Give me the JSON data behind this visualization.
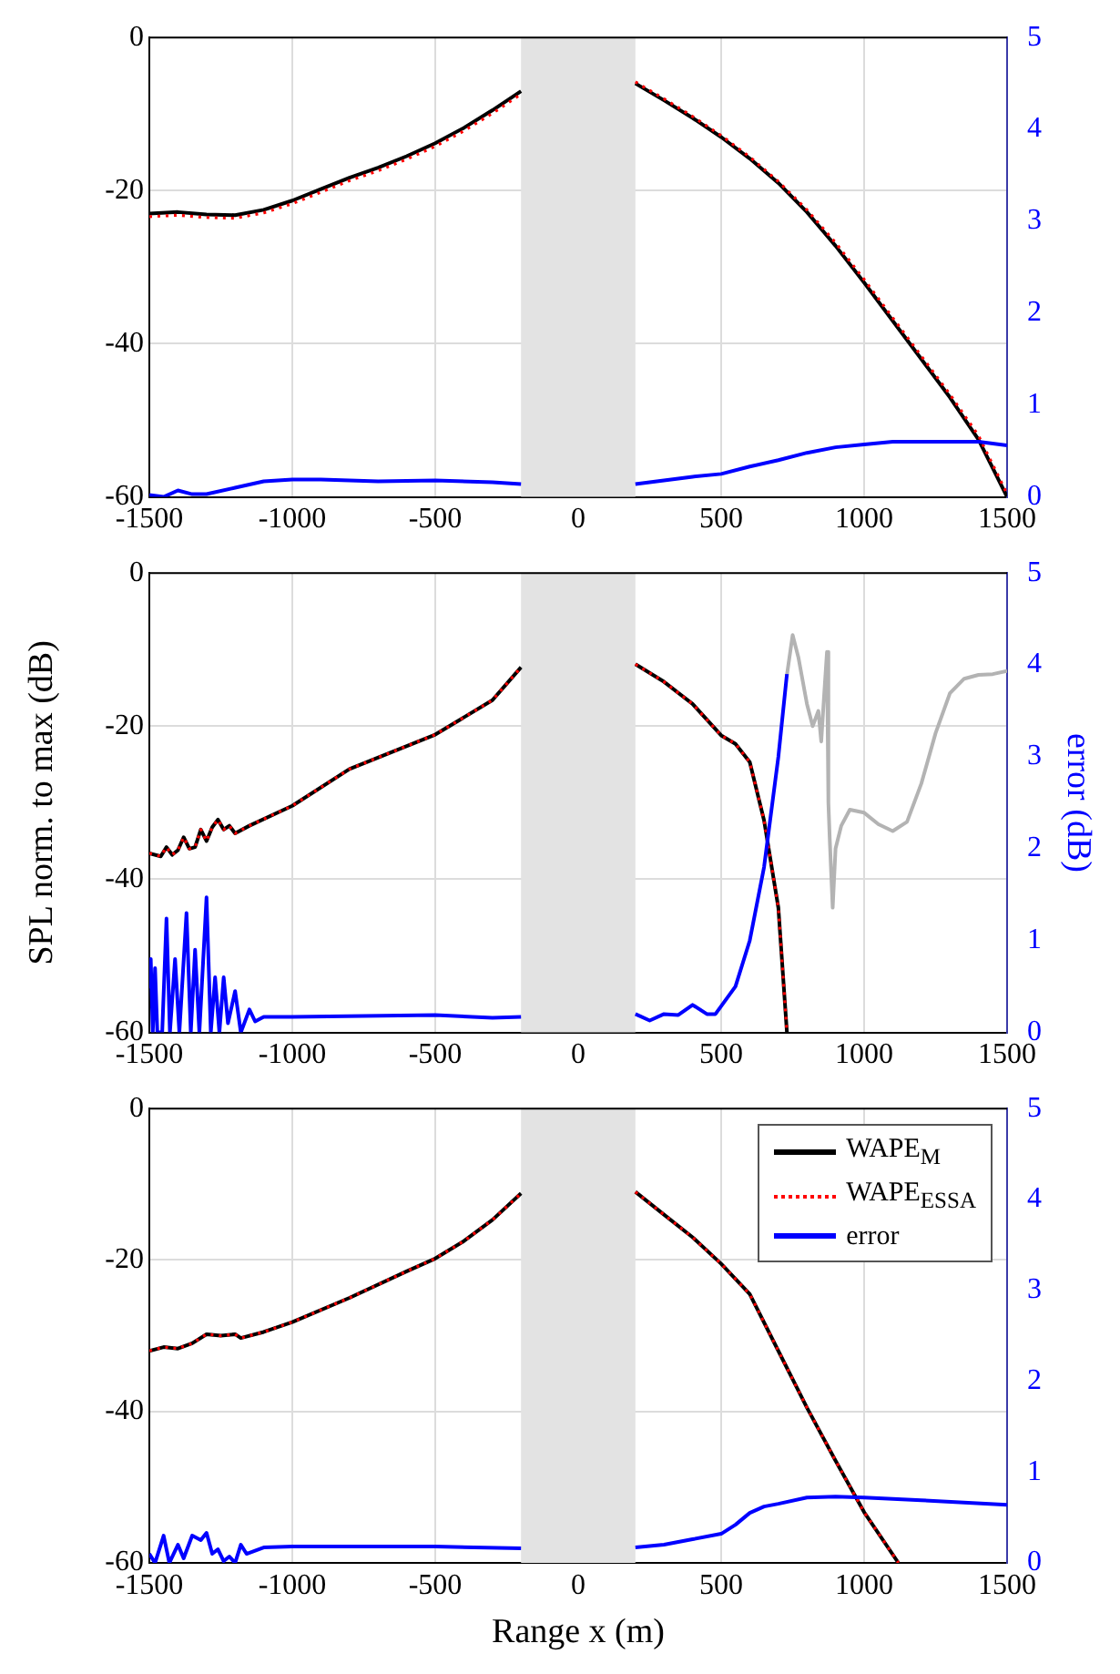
{
  "chart_data": [
    {
      "type": "line",
      "xlim": [
        -1500,
        1500
      ],
      "xticks": [
        -1500,
        -1000,
        -500,
        0,
        500,
        1000,
        1500
      ],
      "ylim": [
        -60,
        0
      ],
      "yticks": [
        -60,
        -40,
        -20,
        0
      ],
      "y2lim": [
        0,
        5
      ],
      "y2ticks": [
        0,
        1,
        2,
        3,
        4,
        5
      ],
      "grid": true,
      "bands": [
        {
          "axis": "x",
          "from": -200,
          "to": 200,
          "color": "#e3e3e3"
        }
      ],
      "series": [
        {
          "color": "#000000",
          "line_style": "solid",
          "x": [
            -1500,
            -1400,
            -1300,
            -1200,
            -1100,
            -1000,
            -900,
            -800,
            -700,
            -600,
            -500,
            -400,
            -300,
            -200,
            0,
            200,
            300,
            400,
            500,
            600,
            700,
            800,
            900,
            1000,
            1100,
            1200,
            1300,
            1400,
            1500
          ],
          "values": [
            -23,
            -22.8,
            -23.1,
            -23.2,
            -22.5,
            -21.3,
            -19.8,
            -18.3,
            -17,
            -15.5,
            -13.8,
            -11.8,
            -9.5,
            -7,
            null,
            -6,
            -8.2,
            -10.5,
            -13,
            -15.8,
            -19,
            -22.8,
            -27.2,
            -32,
            -37,
            -42,
            -47,
            -52.5,
            -60
          ]
        },
        {
          "color": "#ff0000",
          "line_style": "dotted",
          "x": [
            -1500,
            -1400,
            -1300,
            -1200,
            -1100,
            -1000,
            -900,
            -800,
            -700,
            -600,
            -500,
            -400,
            -300,
            -200,
            0,
            200,
            300,
            400,
            500,
            600,
            700,
            800,
            900,
            1000,
            1100,
            1200,
            1300,
            1400,
            1500
          ],
          "values": [
            -23.4,
            -23.2,
            -23.5,
            -23.6,
            -22.9,
            -21.7,
            -20.2,
            -18.7,
            -17.4,
            -15.9,
            -14.2,
            -12.2,
            -9.9,
            -7.4,
            null,
            -5.8,
            -8,
            -10.3,
            -12.8,
            -15.6,
            -18.8,
            -22.5,
            -26.8,
            -31.6,
            -36.6,
            -41.6,
            -46.6,
            -52,
            -59.6
          ]
        },
        {
          "color": "#0000ff",
          "line_style": "solid",
          "axis": "y2",
          "x": [
            -1500,
            -1450,
            -1400,
            -1350,
            -1300,
            -1200,
            -1100,
            -1000,
            -900,
            -700,
            -500,
            -300,
            -200,
            0,
            200,
            300,
            400,
            500,
            600,
            700,
            800,
            900,
            1000,
            1100,
            1200,
            1300,
            1400,
            1500
          ],
          "values": [
            0.02,
            0,
            0.07,
            0.03,
            0.03,
            0.1,
            0.17,
            0.19,
            0.19,
            0.17,
            0.18,
            0.16,
            0.14,
            null,
            0.14,
            0.18,
            0.22,
            0.25,
            0.33,
            0.4,
            0.48,
            0.54,
            0.57,
            0.6,
            0.6,
            0.6,
            0.6,
            0.56
          ]
        }
      ]
    },
    {
      "type": "line",
      "ylabel": "SPL norm. to max (dB)",
      "y2label": "error (dB)",
      "xlim": [
        -1500,
        1500
      ],
      "xticks": [
        -1500,
        -1000,
        -500,
        0,
        500,
        1000,
        1500
      ],
      "ylim": [
        -60,
        0
      ],
      "yticks": [
        -60,
        -40,
        -20,
        0
      ],
      "y2lim": [
        0,
        5
      ],
      "y2ticks": [
        0,
        1,
        2,
        3,
        4,
        5
      ],
      "grid": true,
      "bands": [
        {
          "axis": "x",
          "from": -200,
          "to": 200,
          "color": "#e3e3e3"
        }
      ],
      "series": [
        {
          "color": "#b3b3b3",
          "line_style": "solid",
          "x": [
            730,
            750,
            770,
            800,
            820,
            840,
            850,
            860,
            870,
            875,
            880,
            890,
            900,
            920,
            950,
            1000,
            1050,
            1100,
            1150,
            1200,
            1250,
            1300,
            1350,
            1400,
            1450,
            1500
          ],
          "values": [
            -13.3,
            -8.1,
            -11,
            -17.1,
            -20,
            -18,
            -22,
            -16,
            -10.3,
            -30,
            -35,
            -43.7,
            -36,
            -33,
            -30.9,
            -31.3,
            -32.8,
            -33.7,
            -32.5,
            -27.5,
            -20.9,
            -15.7,
            -13.8,
            -13.3,
            -13.2,
            -12.8
          ]
        },
        {
          "color": "#000000",
          "line_style": "solid",
          "x": [
            -1500,
            -1460,
            -1440,
            -1420,
            -1400,
            -1380,
            -1360,
            -1340,
            -1320,
            -1300,
            -1280,
            -1260,
            -1240,
            -1220,
            -1200,
            -1150,
            -1000,
            -800,
            -500,
            -300,
            -200,
            0,
            200,
            300,
            400,
            500,
            550,
            600,
            650,
            700,
            730
          ],
          "values": [
            -36.6,
            -37,
            -35.8,
            -36.8,
            -36.2,
            -34.5,
            -36,
            -35.8,
            -33.5,
            -35,
            -33.2,
            -32.2,
            -33.5,
            -33,
            -34,
            -33,
            -30.4,
            -25.6,
            -21.1,
            -16.6,
            -12.3,
            null,
            -11.9,
            -14.2,
            -17.1,
            -21.2,
            -22.3,
            -24.7,
            -32.3,
            -43.7,
            -60
          ]
        },
        {
          "color": "#ff0000",
          "line_style": "dotted",
          "x": [
            -1500,
            -1460,
            -1440,
            -1420,
            -1400,
            -1380,
            -1360,
            -1340,
            -1320,
            -1300,
            -1280,
            -1260,
            -1240,
            -1220,
            -1200,
            -1150,
            -1000,
            -800,
            -500,
            -300,
            -200,
            0,
            200,
            300,
            400,
            500,
            550,
            600,
            650,
            700,
            730
          ],
          "values": [
            -36.6,
            -37,
            -35.8,
            -36.8,
            -36.2,
            -34.5,
            -36,
            -35.8,
            -33.5,
            -35,
            -33.2,
            -32.2,
            -33.5,
            -33,
            -34,
            -33,
            -30.4,
            -25.6,
            -21.1,
            -16.6,
            -12.3,
            null,
            -11.9,
            -14.2,
            -17.1,
            -21.2,
            -22.3,
            -24.7,
            -32.3,
            -43.7,
            -60
          ]
        },
        {
          "color": "#0000ff",
          "line_style": "solid",
          "axis": "y2",
          "x": [
            -1500,
            -1495,
            -1488,
            -1480,
            -1472,
            -1455,
            -1440,
            -1428,
            -1410,
            -1395,
            -1370,
            -1355,
            -1340,
            -1325,
            -1300,
            -1285,
            -1270,
            -1255,
            -1240,
            -1225,
            -1200,
            -1180,
            -1150,
            -1130,
            -1100,
            -1000,
            -500,
            -300,
            -200,
            0,
            200,
            250,
            300,
            350,
            400,
            450,
            480,
            550,
            600,
            650,
            700,
            730
          ],
          "values": [
            0.5,
            0.8,
            0,
            0.7,
            0,
            0,
            1.24,
            0,
            0.8,
            0,
            1.3,
            0,
            0.9,
            0,
            1.47,
            0,
            0.6,
            0,
            0.6,
            0.1,
            0.45,
            0,
            0.25,
            0.12,
            0.17,
            0.17,
            0.19,
            0.16,
            0.17,
            null,
            0.2,
            0.13,
            0.2,
            0.19,
            0.3,
            0.2,
            0.2,
            0.5,
            1.0,
            1.8,
            3.0,
            3.9
          ]
        }
      ]
    },
    {
      "type": "line",
      "xlabel": "Range x (m)",
      "xlim": [
        -1500,
        1500
      ],
      "xticks": [
        -1500,
        -1000,
        -500,
        0,
        500,
        1000,
        1500
      ],
      "ylim": [
        -60,
        0
      ],
      "yticks": [
        -60,
        -40,
        -20,
        0
      ],
      "y2lim": [
        0,
        5
      ],
      "y2ticks": [
        0,
        1,
        2,
        3,
        4,
        5
      ],
      "grid": true,
      "legend": "top right",
      "bands": [
        {
          "axis": "x",
          "from": -200,
          "to": 200,
          "color": "#e3e3e3"
        }
      ],
      "series": [
        {
          "name": "WAPE$_{M}$",
          "color": "#000000",
          "line_style": "solid",
          "x": [
            -1500,
            -1450,
            -1400,
            -1350,
            -1300,
            -1250,
            -1200,
            -1180,
            -1100,
            -1000,
            -800,
            -600,
            -500,
            -400,
            -300,
            -200,
            0,
            200,
            300,
            400,
            500,
            600,
            700,
            800,
            900,
            1000,
            1120
          ],
          "values": [
            -32,
            -31.5,
            -31.7,
            -31,
            -29.8,
            -30,
            -29.8,
            -30.3,
            -29.5,
            -28.2,
            -25,
            -21.5,
            -19.8,
            -17.5,
            -14.7,
            -11.2,
            null,
            -11,
            -14,
            -17,
            -20.5,
            -24.5,
            -32,
            -39.5,
            -46.5,
            -53.3,
            -60
          ]
        },
        {
          "name": "WAPE$_{ESSA}$",
          "color": "#ff0000",
          "line_style": "dotted",
          "x": [
            -1500,
            -1450,
            -1400,
            -1350,
            -1300,
            -1250,
            -1200,
            -1180,
            -1100,
            -1000,
            -800,
            -600,
            -500,
            -400,
            -300,
            -200,
            0,
            200,
            300,
            400,
            500,
            600,
            700,
            800,
            900,
            1000,
            1120
          ],
          "values": [
            -32,
            -31.5,
            -31.7,
            -31,
            -29.8,
            -30,
            -29.8,
            -30.3,
            -29.5,
            -28.2,
            -25,
            -21.5,
            -19.8,
            -17.5,
            -14.7,
            -11.2,
            null,
            -11,
            -14,
            -17,
            -20.5,
            -24.5,
            -32,
            -39.5,
            -46.5,
            -53.3,
            -60
          ]
        },
        {
          "name": "error",
          "color": "#0000ff",
          "line_style": "solid",
          "axis": "y2",
          "x": [
            -1500,
            -1480,
            -1450,
            -1430,
            -1400,
            -1380,
            -1350,
            -1320,
            -1300,
            -1280,
            -1260,
            -1240,
            -1220,
            -1200,
            -1180,
            -1160,
            -1100,
            -1000,
            -500,
            -200,
            0,
            200,
            300,
            400,
            500,
            550,
            600,
            650,
            700,
            800,
            900,
            1000,
            1200,
            1500
          ],
          "values": [
            0.1,
            0,
            0.3,
            0,
            0.2,
            0.05,
            0.3,
            0.25,
            0.33,
            0.1,
            0.15,
            0.02,
            0.07,
            0,
            0.2,
            0.1,
            0.17,
            0.18,
            0.18,
            0.16,
            null,
            0.17,
            0.2,
            0.26,
            0.32,
            0.42,
            0.55,
            0.62,
            0.65,
            0.72,
            0.73,
            0.72,
            0.69,
            0.64
          ]
        }
      ]
    }
  ]
}
